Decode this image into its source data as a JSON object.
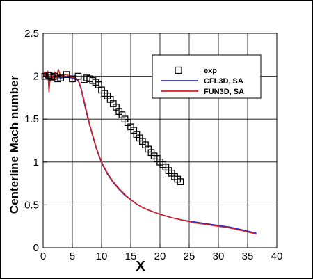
{
  "chart_data": {
    "type": "line",
    "title": "",
    "xlabel": "X",
    "ylabel": "Centerline Mach number",
    "xlim": [
      0,
      40
    ],
    "ylim": [
      0,
      2.5
    ],
    "xticks": [
      "0",
      "5",
      "10",
      "15",
      "20",
      "25",
      "30",
      "35",
      "40"
    ],
    "yticks": [
      "0",
      "0.5",
      "1",
      "1.5",
      "2",
      "2.5"
    ],
    "grid": true,
    "legend_position": "top-right",
    "series": [
      {
        "name": "exp",
        "style": "markers",
        "marker": "open-square",
        "color": "#000000",
        "x": [
          0.3,
          1,
          1.5,
          2,
          2.5,
          3,
          4,
          5,
          6,
          7,
          7.5,
          8,
          8.5,
          9,
          9.5,
          10,
          10.5,
          11,
          11.5,
          12,
          12.5,
          13,
          13.5,
          14,
          14.5,
          15,
          15.5,
          16,
          16.5,
          17,
          17.5,
          18,
          18.5,
          19,
          19.5,
          20,
          20.5,
          21,
          21.5,
          22,
          22.5,
          23,
          23.5
        ],
        "y": [
          2.0,
          2.01,
          1.99,
          2.0,
          1.97,
          1.98,
          2.02,
          1.97,
          2.0,
          1.96,
          1.98,
          1.97,
          1.95,
          1.93,
          1.9,
          1.84,
          1.8,
          1.77,
          1.73,
          1.68,
          1.64,
          1.59,
          1.55,
          1.5,
          1.46,
          1.41,
          1.37,
          1.32,
          1.28,
          1.24,
          1.2,
          1.15,
          1.11,
          1.07,
          1.04,
          1.0,
          0.97,
          0.94,
          0.9,
          0.87,
          0.83,
          0.8,
          0.77
        ]
      },
      {
        "name": "CFL3D, SA",
        "style": "line",
        "color": "#2b2bd0",
        "x": [
          0,
          0.5,
          1,
          1.5,
          2,
          3,
          4,
          5,
          6,
          6.5,
          7,
          7.5,
          8,
          8.5,
          9,
          9.5,
          10,
          11,
          12,
          13,
          14,
          15,
          16,
          17,
          18,
          20,
          22,
          24,
          26,
          28,
          30,
          32,
          34,
          36.5
        ],
        "y": [
          2.0,
          2.03,
          1.96,
          2.03,
          1.99,
          1.98,
          1.99,
          1.98,
          1.95,
          1.85,
          1.7,
          1.55,
          1.42,
          1.3,
          1.18,
          1.08,
          0.99,
          0.86,
          0.76,
          0.68,
          0.61,
          0.56,
          0.51,
          0.47,
          0.44,
          0.39,
          0.35,
          0.32,
          0.3,
          0.28,
          0.26,
          0.24,
          0.21,
          0.17
        ]
      },
      {
        "name": "FUN3D, SA",
        "style": "line",
        "color": "#d02020",
        "x": [
          0,
          0.3,
          0.5,
          0.8,
          1,
          1.3,
          1.6,
          2,
          2.3,
          2.6,
          3,
          4,
          5,
          6,
          6.5,
          7,
          7.5,
          8,
          8.5,
          9,
          9.5,
          10,
          11,
          12,
          13,
          14,
          15,
          16,
          17,
          18,
          20,
          22,
          24,
          26,
          28,
          30,
          32,
          34,
          36.5
        ],
        "y": [
          2.0,
          2.05,
          1.97,
          2.06,
          1.82,
          2.05,
          1.96,
          2.05,
          1.98,
          2.08,
          2.0,
          2.02,
          1.99,
          1.96,
          1.86,
          1.72,
          1.57,
          1.43,
          1.31,
          1.19,
          1.09,
          1.0,
          0.87,
          0.77,
          0.69,
          0.62,
          0.56,
          0.51,
          0.47,
          0.44,
          0.39,
          0.35,
          0.32,
          0.29,
          0.27,
          0.25,
          0.23,
          0.2,
          0.16
        ]
      }
    ]
  }
}
